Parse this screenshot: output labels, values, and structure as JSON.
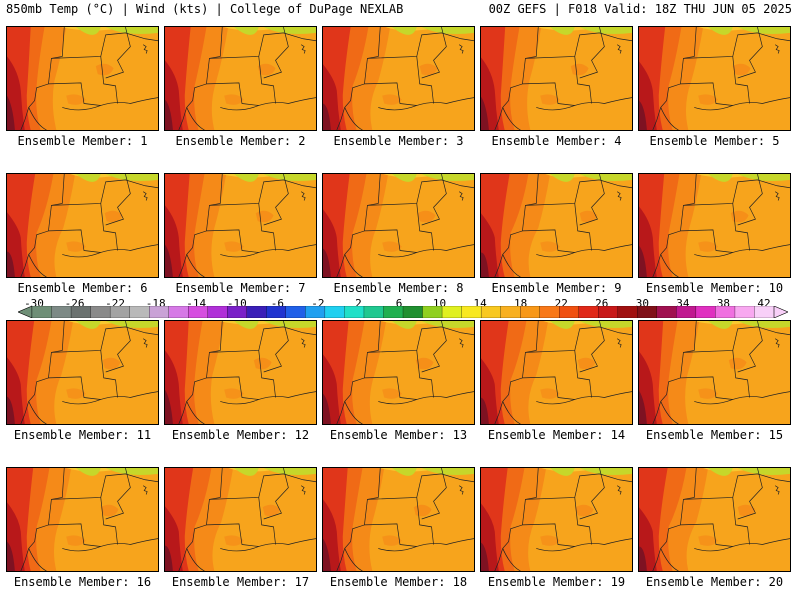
{
  "header": {
    "left": "850mb Temp (°C) | Wind (kts) | College of DuPage NEXLAB",
    "right": "00Z GEFS | F018 Valid: 18Z THU JUN 05 2025"
  },
  "panels": [
    {
      "label": "Ensemble Member: 1"
    },
    {
      "label": "Ensemble Member: 2"
    },
    {
      "label": "Ensemble Member: 3"
    },
    {
      "label": "Ensemble Member: 4"
    },
    {
      "label": "Ensemble Member: 5"
    },
    {
      "label": "Ensemble Member: 6"
    },
    {
      "label": "Ensemble Member: 7"
    },
    {
      "label": "Ensemble Member: 8"
    },
    {
      "label": "Ensemble Member: 9"
    },
    {
      "label": "Ensemble Member: 10"
    },
    {
      "label": "Ensemble Member: 11"
    },
    {
      "label": "Ensemble Member: 12"
    },
    {
      "label": "Ensemble Member: 13"
    },
    {
      "label": "Ensemble Member: 14"
    },
    {
      "label": "Ensemble Member: 15"
    },
    {
      "label": "Ensemble Member: 16"
    },
    {
      "label": "Ensemble Member: 17"
    },
    {
      "label": "Ensemble Member: 18"
    },
    {
      "label": "Ensemble Member: 19"
    },
    {
      "label": "Ensemble Member: 20"
    }
  ],
  "colorbar": {
    "tick_labels": [
      "-30",
      "-26",
      "-22",
      "-18",
      "-14",
      "-10",
      "-6",
      "-2",
      "2",
      "6",
      "10",
      "14",
      "18",
      "22",
      "26",
      "30",
      "34",
      "38",
      "42"
    ],
    "colors": [
      "#6f8f77",
      "#7d8a86",
      "#6b7270",
      "#8a8a8a",
      "#a3a3a3",
      "#b9b9b9",
      "#c9a2d6",
      "#d679e6",
      "#d64ee0",
      "#b030d8",
      "#7a20c8",
      "#3a1fb8",
      "#2034d0",
      "#2060e8",
      "#20a0f0",
      "#20d0f0",
      "#20e0c8",
      "#20c890",
      "#20b050",
      "#209030",
      "#90d020",
      "#e0f020",
      "#f8e820",
      "#f8c820",
      "#f8b020",
      "#f89818",
      "#f87818",
      "#f05010",
      "#e02818",
      "#c81818",
      "#a01010",
      "#801018",
      "#a01050",
      "#c01890",
      "#e030c0",
      "#f070e0",
      "#f8a8f0",
      "#f8d0f8"
    ],
    "palette": {
      "light_yellow": "#f8c830",
      "orange": "#f7a41c",
      "dark_orange": "#f58a18",
      "red_orange": "#f06a16",
      "red": "#e0361a",
      "dark_red": "#b8181a",
      "maroon": "#7e1222",
      "yellow_green": "#c6d72a"
    }
  }
}
